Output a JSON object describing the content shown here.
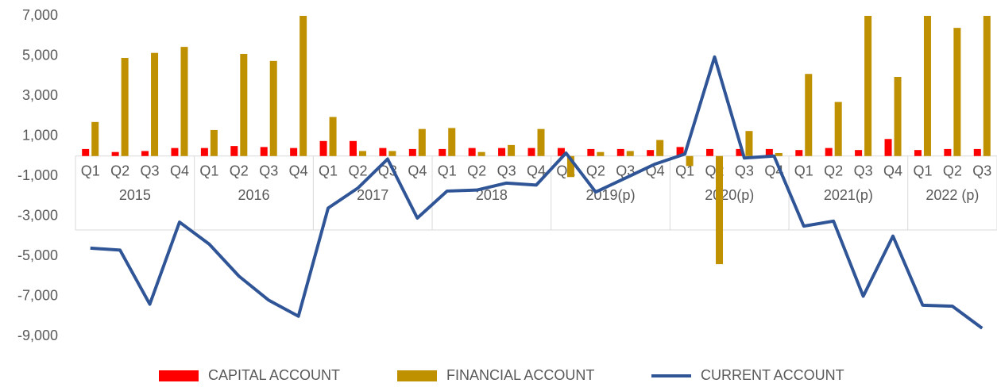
{
  "chart_data": {
    "type": "bar_line",
    "categories": [
      "Q1",
      "Q2",
      "Q3",
      "Q4",
      "Q1",
      "Q2",
      "Q3",
      "Q4",
      "Q1",
      "Q2",
      "Q3",
      "Q4",
      "Q1",
      "Q2",
      "Q3",
      "Q4",
      "Q1",
      "Q2",
      "Q3",
      "Q4",
      "Q1",
      "Q2",
      "Q3",
      "Q4",
      "Q1",
      "Q2",
      "Q3",
      "Q4",
      "Q1",
      "Q2",
      "Q3"
    ],
    "groups": [
      "2015",
      "2016",
      "2017",
      "2018",
      "2019(p)",
      "2020(p)",
      "2021(p)",
      "2022 (p)"
    ],
    "series": [
      {
        "name": "CAPITAL ACCOUNT",
        "type": "bar",
        "color": "#ff0000",
        "values": [
          350,
          200,
          250,
          400,
          400,
          500,
          450,
          400,
          750,
          750,
          400,
          350,
          350,
          400,
          400,
          400,
          400,
          350,
          350,
          300,
          450,
          350,
          350,
          350,
          300,
          400,
          300,
          850,
          300,
          350,
          350
        ]
      },
      {
        "name": "FINANCIAL ACCOUNT",
        "type": "bar",
        "color": "#bf9000",
        "values": [
          1700,
          4900,
          5150,
          5450,
          1300,
          5100,
          4750,
          7000,
          1950,
          250,
          250,
          1350,
          1400,
          200,
          550,
          1350,
          -1050,
          200,
          250,
          800,
          -500,
          -5400,
          1250,
          150,
          4100,
          2700,
          7000,
          3950,
          7000,
          6400,
          7000
        ]
      },
      {
        "name": "CURRENT ACCOUNT",
        "type": "line",
        "color": "#2f5597",
        "values": [
          -4600,
          -4700,
          -7400,
          -3300,
          -4400,
          -6000,
          -7200,
          -8000,
          -2600,
          -1600,
          -150,
          -3100,
          -1750,
          -1700,
          -1350,
          -1450,
          150,
          -1800,
          -1100,
          -400,
          100,
          4950,
          -100,
          0,
          -3500,
          -3250,
          -7000,
          -4000,
          -7450,
          -7500,
          -8600
        ]
      }
    ],
    "ylim": [
      -9000,
      7000
    ],
    "yticks": [
      {
        "value": 7000,
        "label": "7,000"
      },
      {
        "value": 5000,
        "label": "5,000"
      },
      {
        "value": 3000,
        "label": "3,000"
      },
      {
        "value": 1000,
        "label": "1,000"
      },
      {
        "value": -1000,
        "label": "-1,000"
      },
      {
        "value": -3000,
        "label": "-3,000"
      },
      {
        "value": -5000,
        "label": "-5,000"
      },
      {
        "value": -7000,
        "label": "-7,000"
      },
      {
        "value": -9000,
        "label": "-9,000"
      }
    ],
    "legend": "bottom"
  }
}
